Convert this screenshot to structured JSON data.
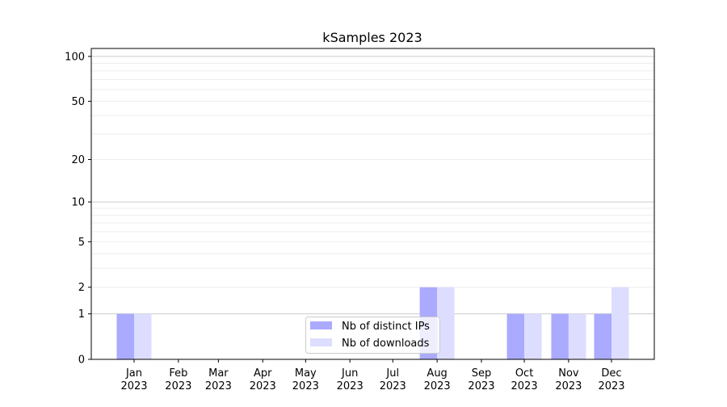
{
  "chart_data": {
    "type": "bar",
    "title": "kSamples 2023",
    "xlabel": "",
    "ylabel": "",
    "y_scale": "log(1+y)",
    "ylim": [
      0,
      113
    ],
    "yticks": [
      0,
      1,
      2,
      5,
      10,
      20,
      50,
      100
    ],
    "ytick_labels": [
      "0",
      "1",
      "2",
      "5",
      "10",
      "20",
      "50",
      "100"
    ],
    "grid": true,
    "legend_position": "lower-center",
    "categories": [
      "2023-01-01",
      "2023-02-01",
      "2023-03-01",
      "2023-04-01",
      "2023-05-01",
      "2023-06-01",
      "2023-07-01",
      "2023-08-01",
      "2023-09-01",
      "2023-10-01",
      "2023-11-01",
      "2023-12-01"
    ],
    "xtick_labels": [
      [
        "Jan",
        "2023"
      ],
      [
        "Feb",
        "2023"
      ],
      [
        "Mar",
        "2023"
      ],
      [
        "Apr",
        "2023"
      ],
      [
        "May",
        "2023"
      ],
      [
        "Jun",
        "2023"
      ],
      [
        "Jul",
        "2023"
      ],
      [
        "Aug",
        "2023"
      ],
      [
        "Sep",
        "2023"
      ],
      [
        "Oct",
        "2023"
      ],
      [
        "Nov",
        "2023"
      ],
      [
        "Dec",
        "2023"
      ]
    ],
    "series": [
      {
        "name": "Nb of distinct IPs",
        "color": "#aaaaff",
        "values": [
          1,
          0,
          0,
          0,
          0,
          0,
          0,
          2,
          0,
          1,
          1,
          1
        ]
      },
      {
        "name": "Nb of downloads",
        "color": "#ddddff",
        "values": [
          1,
          0,
          0,
          0,
          0,
          0,
          0,
          2,
          0,
          1,
          1,
          2
        ]
      }
    ]
  }
}
